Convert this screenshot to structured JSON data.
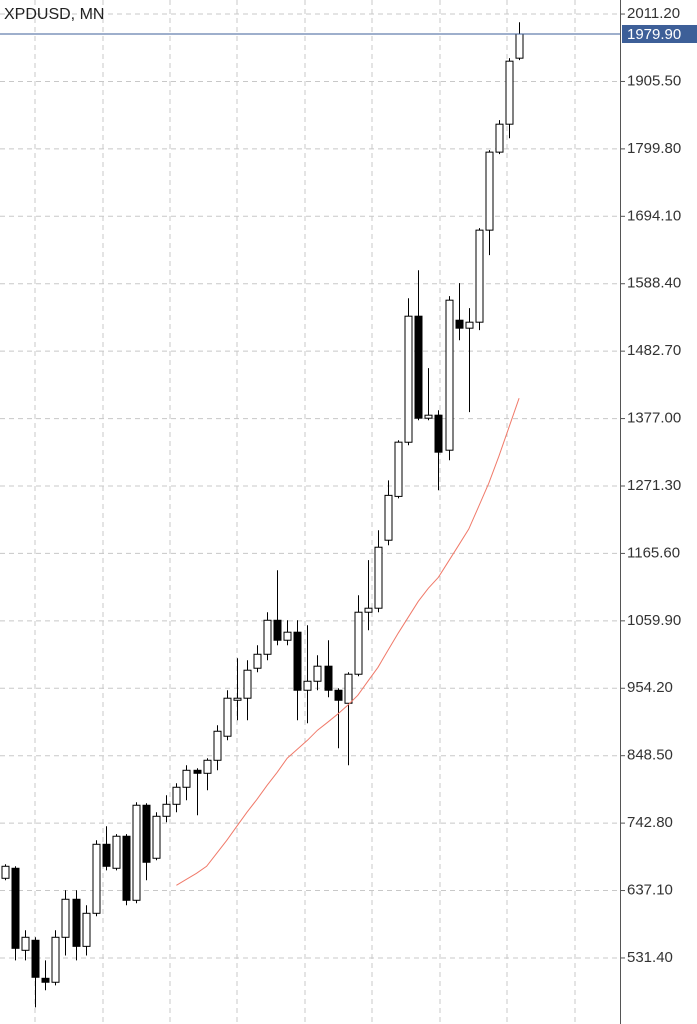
{
  "chart_data": {
    "type": "candlestick",
    "title": "XPDUSD, MN",
    "ylim": [
      431,
      2033.2
    ],
    "yticks": [
      {
        "value": 2011.2,
        "label": "2011.20"
      },
      {
        "value": 1905.5,
        "label": "1905.50"
      },
      {
        "value": 1799.8,
        "label": "1799.80"
      },
      {
        "value": 1694.1,
        "label": "1694.10"
      },
      {
        "value": 1588.4,
        "label": "1588.40"
      },
      {
        "value": 1482.7,
        "label": "1482.70"
      },
      {
        "value": 1377.0,
        "label": "1377.00"
      },
      {
        "value": 1271.3,
        "label": "1271.30"
      },
      {
        "value": 1165.6,
        "label": "1165.60"
      },
      {
        "value": 1059.9,
        "label": "1059.90"
      },
      {
        "value": 954.2,
        "label": "954.20"
      },
      {
        "value": 848.5,
        "label": "848.50"
      },
      {
        "value": 742.8,
        "label": "742.80"
      },
      {
        "value": 637.1,
        "label": "637.10"
      },
      {
        "value": 531.4,
        "label": "531.40"
      }
    ],
    "grid": true,
    "bull_color": "#ffffff",
    "bear_color": "#000000",
    "wick_color": "#000000",
    "open": [
      656.3,
      672.0,
      543.4,
      559.1,
      499.5,
      493.3,
      563.8,
      623.4,
      549.6,
      601.4,
      709.6,
      672.0,
      722.2,
      621.8,
      770.8,
      687.7,
      753.5,
      772.3,
      799.0,
      825.6,
      820.9,
      841.3,
      879.0,
      935.4,
      938.6,
      985.6,
      1007.5,
      1060.8,
      1029.5,
      1042.1,
      951.1,
      965.2,
      988.8,
      951.1,
      930.7,
      976.2,
      1073.4,
      1079.7,
      1186.3,
      1255.0,
      1339.9,
      1537.5,
      1377.6,
      1382.3,
      1327.4,
      1531.2,
      1518.7,
      1528.1,
      1672.4,
      1794.7,
      1838.5,
      1942.0
    ],
    "high": [
      678.4,
      675.1,
      574.8,
      563.8,
      527.7,
      574.8,
      637.5,
      637.5,
      614.0,
      715.9,
      737.8,
      725.6,
      725.6,
      775.5,
      773.9,
      759.8,
      786.4,
      805.2,
      833.5,
      828.8,
      844.5,
      896.2,
      951.1,
      1001.3,
      998.1,
      1021.6,
      1073.4,
      1139.2,
      1060.8,
      1060.8,
      1053.0,
      1006.0,
      1029.5,
      954.2,
      979.3,
      1100.0,
      1155.0,
      1202.0,
      1280.1,
      1343.0,
      1565.7,
      1609.6,
      1456.0,
      1390.1,
      1568.9,
      1589.3,
      1550.1,
      1675.5,
      1797.8,
      1844.8,
      1942.0,
      1998.4
    ],
    "low": [
      653.2,
      527.7,
      527.7,
      454.0,
      480.7,
      488.5,
      535.2,
      527.7,
      535.2,
      596.7,
      668.8,
      668.8,
      614.0,
      617.1,
      653.2,
      684.5,
      744.1,
      759.8,
      778.6,
      755.1,
      794.3,
      825.6,
      872.7,
      904.0,
      904.0,
      979.3,
      998.1,
      1021.6,
      1021.6,
      904.0,
      899.3,
      951.1,
      940.2,
      860.2,
      833.5,
      973.0,
      1045.2,
      1073.4,
      1178.4,
      1251.9,
      1335.2,
      1374.4,
      1374.4,
      1264.7,
      1311.7,
      1499.8,
      1387.1,
      1515.6,
      1633.2,
      1791.5,
      1816.5,
      1938.9
    ],
    "close": [
      675.1,
      546.5,
      563.8,
      501.1,
      493.3,
      563.8,
      623.4,
      549.6,
      601.4,
      709.6,
      675.1,
      722.2,
      621.8,
      770.8,
      681.4,
      753.5,
      772.3,
      799.0,
      825.6,
      820.9,
      841.3,
      886.8,
      938.6,
      938.6,
      982.5,
      1007.5,
      1060.8,
      1029.5,
      1042.1,
      951.1,
      965.2,
      988.8,
      951.1,
      935.4,
      976.2,
      1073.4,
      1079.7,
      1175.3,
      1256.6,
      1340.0,
      1537.5,
      1377.6,
      1382.3,
      1324.3,
      1562.6,
      1518.7,
      1528.1,
      1672.4,
      1794.7,
      1838.5,
      1937.3,
      1979.9
    ],
    "moving_average": {
      "color": "#f07a6a",
      "values": [
        null,
        null,
        null,
        null,
        null,
        null,
        null,
        null,
        null,
        null,
        null,
        null,
        null,
        null,
        null,
        null,
        null,
        645.3,
        654.7,
        664.1,
        675.1,
        695.5,
        715.9,
        737.8,
        759.8,
        780.2,
        802.1,
        822.5,
        844.5,
        858.6,
        872.7,
        888.4,
        900.9,
        913.5,
        927.6,
        943.2,
        965.2,
        987.1,
        1013.8,
        1040.4,
        1065.5,
        1090.6,
        1111.0,
        1128.2,
        1153.3,
        1178.4,
        1203.5,
        1239.6,
        1275.7,
        1318.0,
        1363.5,
        1409.0
      ]
    },
    "price_line": {
      "value": 1979.9,
      "label": "1979.90",
      "color": "#3d5f98"
    }
  }
}
